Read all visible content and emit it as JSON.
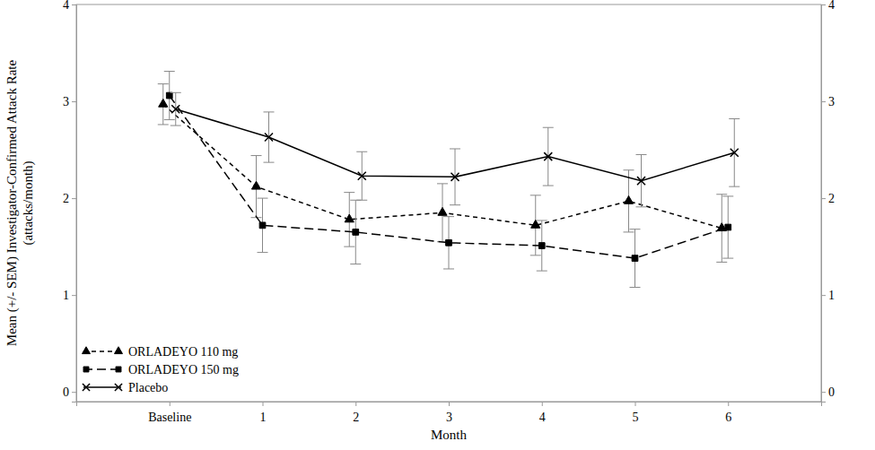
{
  "chart_data": {
    "type": "line",
    "x_label": "Month",
    "y_label": [
      "Mean (+/- SEM) Investigator-Confirmed Attack Rate",
      "(attacks/month)"
    ],
    "categories": [
      "Baseline",
      "1",
      "2",
      "3",
      "4",
      "5",
      "6"
    ],
    "ylim": [
      -0.1,
      4
    ],
    "yticks": [
      0,
      1,
      2,
      3,
      4
    ],
    "y2lim": [
      -0.1,
      4
    ],
    "y2ticks": [
      0,
      1,
      2,
      3,
      4
    ],
    "legend": "lower left",
    "grid": false,
    "series": [
      {
        "name": "ORLADEYO 110 mg",
        "color": "#000000",
        "marker": "triangle",
        "line_style": "dashed",
        "values": [
          2.97,
          2.12,
          1.78,
          1.85,
          1.72,
          1.97,
          1.69
        ],
        "errors": [
          0.21,
          0.32,
          0.28,
          0.3,
          0.31,
          0.32,
          0.35
        ]
      },
      {
        "name": "ORLADEYO 150 mg",
        "color": "#000000",
        "marker": "square",
        "line_style": "longdashed",
        "values": [
          3.06,
          1.72,
          1.65,
          1.54,
          1.51,
          1.38,
          1.7
        ],
        "errors": [
          0.25,
          0.28,
          0.33,
          0.27,
          0.26,
          0.3,
          0.32
        ]
      },
      {
        "name": "Placebo",
        "color": "#000000",
        "marker": "x",
        "line_style": "solid",
        "values": [
          2.92,
          2.63,
          2.23,
          2.22,
          2.43,
          2.18,
          2.47
        ],
        "errors": [
          0.17,
          0.26,
          0.25,
          0.29,
          0.3,
          0.27,
          0.35
        ]
      }
    ]
  }
}
